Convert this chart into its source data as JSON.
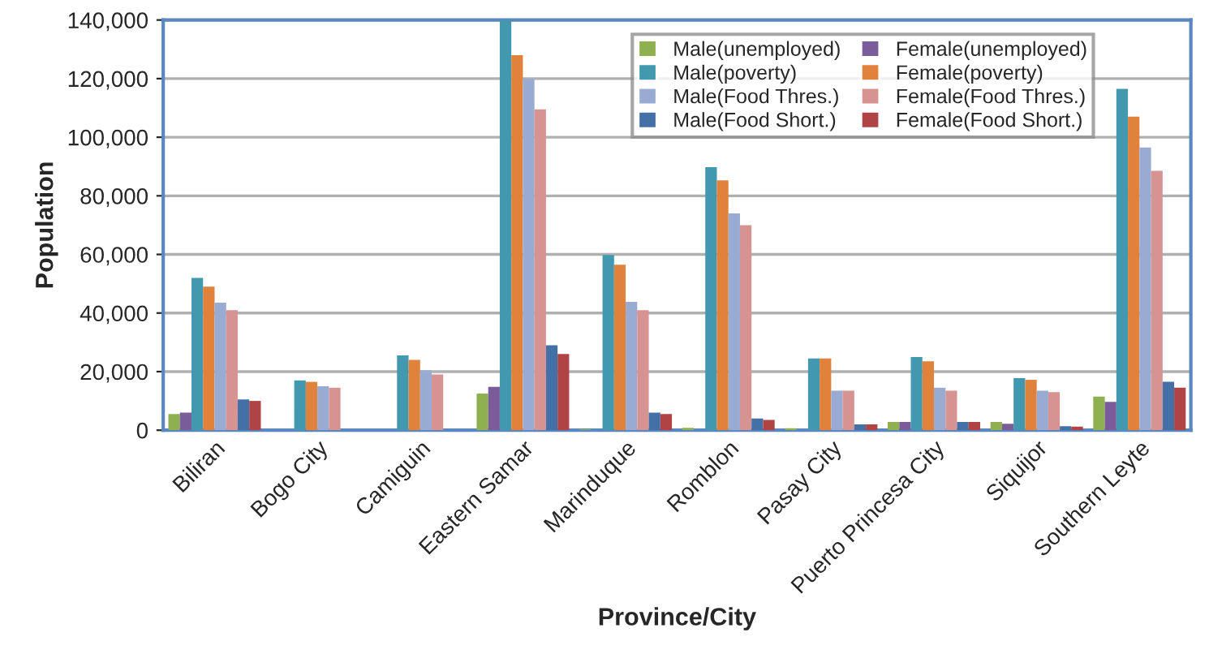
{
  "chart_data": {
    "type": "bar",
    "xlabel": "Province/City",
    "ylabel": "Population",
    "categories": [
      "Biliran",
      "Bogo City",
      "Camiguin",
      "Eastern Samar",
      "Marinduque",
      "Romblon",
      "Pasay City",
      "Puerto Princesa City",
      "Siquijor",
      "Southern Leyte"
    ],
    "series": [
      {
        "name": "Male(unemployed)",
        "color": "#8eb050",
        "values": [
          5500,
          0,
          0,
          12500,
          300,
          800,
          700,
          2800,
          2800,
          11500
        ]
      },
      {
        "name": "Female(unemployed)",
        "color": "#7a5c9a",
        "values": [
          6000,
          0,
          0,
          14800,
          null,
          null,
          null,
          2800,
          2200,
          9700
        ]
      },
      {
        "name": "Male(poverty)",
        "color": "#4298ae",
        "values": [
          52000,
          17000,
          25500,
          140000,
          59800,
          89800,
          24500,
          25000,
          17800,
          116500
        ]
      },
      {
        "name": "Female(poverty)",
        "color": "#e0823c",
        "values": [
          49000,
          16500,
          24000,
          128000,
          56500,
          85300,
          24500,
          23500,
          17200,
          107000
        ]
      },
      {
        "name": "Male(Food Thres.)",
        "color": "#9aabd3",
        "values": [
          43500,
          15000,
          20500,
          120000,
          43800,
          74000,
          13500,
          14500,
          13500,
          96500
        ]
      },
      {
        "name": "Female(Food Thres.)",
        "color": "#d79392",
        "values": [
          41000,
          14500,
          19000,
          109500,
          41000,
          70000,
          13500,
          13500,
          13000,
          88500
        ]
      },
      {
        "name": "Male(Food Short.)",
        "color": "#4470a8",
        "values": [
          10500,
          0,
          0,
          29000,
          6000,
          4000,
          2000,
          2800,
          1400,
          16500
        ]
      },
      {
        "name": "Female(Food Short.)",
        "color": "#b04444",
        "values": [
          10000,
          0,
          0,
          26000,
          5500,
          3500,
          2000,
          2800,
          1200,
          14500
        ]
      }
    ],
    "ylim": [
      0,
      140000
    ],
    "yticks": [
      {
        "value": 0,
        "label": "0"
      },
      {
        "value": 20000,
        "label": "20,000"
      },
      {
        "value": 40000,
        "label": "40,000"
      },
      {
        "value": 60000,
        "label": "60,000"
      },
      {
        "value": 80000,
        "label": "80,000"
      },
      {
        "value": 100000,
        "label": "100,000"
      },
      {
        "value": 120000,
        "label": "120,000"
      },
      {
        "value": 140000,
        "label": "140,000"
      }
    ],
    "grid": "y",
    "legend": "top right"
  }
}
